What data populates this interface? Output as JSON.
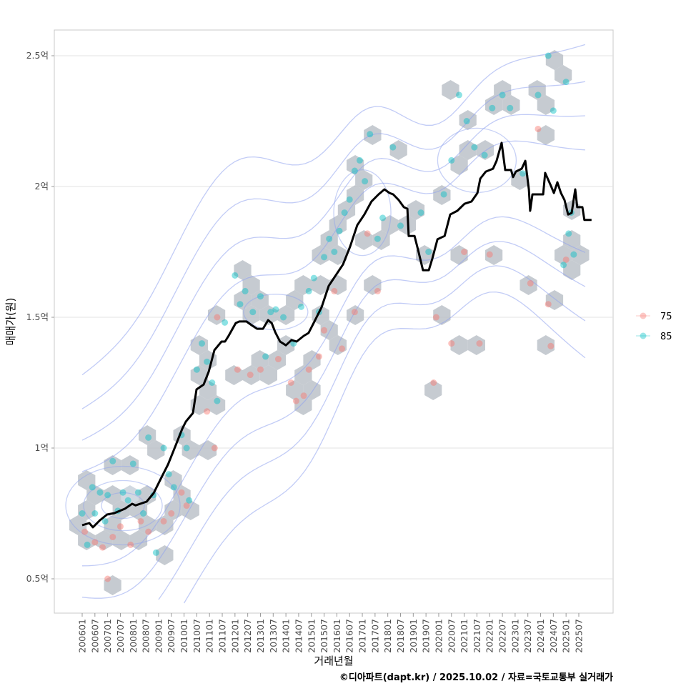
{
  "chart_data": {
    "type": "scatter",
    "title": "",
    "xlabel": "거래년월",
    "ylabel": "매매가(원)",
    "caption": "©디아파트(dapt.kr) / 2025.10.02 / 자료=국토교통부 실거래가",
    "xlim": [
      2004.9,
      2026.9
    ],
    "ylim": [
      0.35,
      2.6
    ],
    "y_ticks": [
      {
        "value": 0.5,
        "label": "0.5억"
      },
      {
        "value": 1.0,
        "label": "1억"
      },
      {
        "value": 1.5,
        "label": "1.5억"
      },
      {
        "value": 2.0,
        "label": "2억"
      },
      {
        "value": 2.5,
        "label": "2.5억"
      }
    ],
    "x_ticks": [
      "200601",
      "200607",
      "200701",
      "200707",
      "200801",
      "200807",
      "200901",
      "200907",
      "201001",
      "201007",
      "201101",
      "201107",
      "201201",
      "201207",
      "201301",
      "201307",
      "201401",
      "201407",
      "201501",
      "201507",
      "201601",
      "201607",
      "201701",
      "201707",
      "201801",
      "201807",
      "201901",
      "201907",
      "202001",
      "202007",
      "202101",
      "202107",
      "202201",
      "202207",
      "202301",
      "202307",
      "202401",
      "202407",
      "202501",
      "202507"
    ],
    "grid": true,
    "legend": {
      "placement": "right",
      "entries": [
        {
          "label": "75",
          "color": "#F8766D"
        },
        {
          "label": "85",
          "color": "#00BFC4"
        }
      ]
    },
    "colors": {
      "line": "#000000",
      "hex": "#b8bec5",
      "contour": "#8fa3ee",
      "grid": "#e3e3e3"
    },
    "trend_line": [
      [
        2006.0,
        0.705
      ],
      [
        2006.28,
        0.713
      ],
      [
        2006.42,
        0.697
      ],
      [
        2006.7,
        0.724
      ],
      [
        2006.98,
        0.746
      ],
      [
        2007.26,
        0.751
      ],
      [
        2007.68,
        0.768
      ],
      [
        2007.96,
        0.787
      ],
      [
        2008.1,
        0.781
      ],
      [
        2008.53,
        0.795
      ],
      [
        2008.81,
        0.828
      ],
      [
        2009.09,
        0.883
      ],
      [
        2009.37,
        0.937
      ],
      [
        2009.65,
        1.005
      ],
      [
        2009.93,
        1.074
      ],
      [
        2010.07,
        1.101
      ],
      [
        2010.35,
        1.134
      ],
      [
        2010.49,
        1.224
      ],
      [
        2010.77,
        1.243
      ],
      [
        2010.97,
        1.292
      ],
      [
        2011.19,
        1.374
      ],
      [
        2011.47,
        1.407
      ],
      [
        2011.61,
        1.407
      ],
      [
        2011.75,
        1.429
      ],
      [
        2012.03,
        1.478
      ],
      [
        2012.17,
        1.484
      ],
      [
        2012.45,
        1.484
      ],
      [
        2012.65,
        1.47
      ],
      [
        2012.87,
        1.456
      ],
      [
        2013.1,
        1.456
      ],
      [
        2013.3,
        1.489
      ],
      [
        2013.44,
        1.478
      ],
      [
        2013.58,
        1.443
      ],
      [
        2013.77,
        1.407
      ],
      [
        2014.0,
        1.393
      ],
      [
        2014.22,
        1.413
      ],
      [
        2014.42,
        1.407
      ],
      [
        2014.7,
        1.429
      ],
      [
        2014.89,
        1.44
      ],
      [
        2015.12,
        1.484
      ],
      [
        2015.4,
        1.538
      ],
      [
        2015.68,
        1.62
      ],
      [
        2015.96,
        1.661
      ],
      [
        2016.24,
        1.702
      ],
      [
        2016.52,
        1.77
      ],
      [
        2016.8,
        1.852
      ],
      [
        2017.08,
        1.893
      ],
      [
        2017.36,
        1.943
      ],
      [
        2017.64,
        1.97
      ],
      [
        2017.87,
        1.989
      ],
      [
        2018.07,
        1.975
      ],
      [
        2018.21,
        1.97
      ],
      [
        2018.43,
        1.948
      ],
      [
        2018.63,
        1.921
      ],
      [
        2018.77,
        1.915
      ],
      [
        2018.82,
        1.811
      ],
      [
        2019.05,
        1.811
      ],
      [
        2019.19,
        1.757
      ],
      [
        2019.38,
        1.68
      ],
      [
        2019.61,
        1.68
      ],
      [
        2019.75,
        1.724
      ],
      [
        2019.95,
        1.798
      ],
      [
        2020.23,
        1.811
      ],
      [
        2020.45,
        1.893
      ],
      [
        2020.73,
        1.907
      ],
      [
        2021.01,
        1.934
      ],
      [
        2021.29,
        1.943
      ],
      [
        2021.52,
        1.975
      ],
      [
        2021.63,
        2.03
      ],
      [
        2021.85,
        2.057
      ],
      [
        2022.13,
        2.068
      ],
      [
        2022.27,
        2.098
      ],
      [
        2022.47,
        2.167
      ],
      [
        2022.61,
        2.063
      ],
      [
        2022.84,
        2.063
      ],
      [
        2022.92,
        2.036
      ],
      [
        2023.03,
        2.057
      ],
      [
        2023.26,
        2.068
      ],
      [
        2023.4,
        2.098
      ],
      [
        2023.54,
        1.989
      ],
      [
        2023.59,
        1.907
      ],
      [
        2023.68,
        1.97
      ],
      [
        2024.1,
        1.97
      ],
      [
        2024.18,
        2.052
      ],
      [
        2024.38,
        2.008
      ],
      [
        2024.52,
        1.975
      ],
      [
        2024.66,
        2.016
      ],
      [
        2024.8,
        1.975
      ],
      [
        2024.94,
        1.948
      ],
      [
        2025.08,
        1.893
      ],
      [
        2025.22,
        1.899
      ],
      [
        2025.36,
        1.989
      ],
      [
        2025.44,
        1.921
      ],
      [
        2025.64,
        1.921
      ],
      [
        2025.72,
        1.872
      ],
      [
        2026.0,
        1.872
      ]
    ],
    "series": [
      {
        "name": "75",
        "points": [
          [
            2006.1,
            0.68
          ],
          [
            2006.5,
            0.64
          ],
          [
            2006.8,
            0.62
          ],
          [
            2007.0,
            0.5
          ],
          [
            2007.2,
            0.66
          ],
          [
            2007.5,
            0.7
          ],
          [
            2007.9,
            0.63
          ],
          [
            2008.3,
            0.72
          ],
          [
            2008.6,
            0.68
          ],
          [
            2009.2,
            0.72
          ],
          [
            2009.5,
            0.75
          ],
          [
            2009.9,
            0.83
          ],
          [
            2010.1,
            0.78
          ],
          [
            2010.9,
            1.14
          ],
          [
            2011.2,
            1.0
          ],
          [
            2011.3,
            1.5
          ],
          [
            2012.1,
            1.3
          ],
          [
            2012.6,
            1.28
          ],
          [
            2013.0,
            1.3
          ],
          [
            2013.7,
            1.34
          ],
          [
            2014.2,
            1.25
          ],
          [
            2014.4,
            1.18
          ],
          [
            2014.7,
            1.2
          ],
          [
            2014.9,
            1.3
          ],
          [
            2015.3,
            1.35
          ],
          [
            2015.5,
            1.45
          ],
          [
            2015.9,
            1.6
          ],
          [
            2016.2,
            1.38
          ],
          [
            2016.7,
            1.52
          ],
          [
            2017.2,
            1.82
          ],
          [
            2017.6,
            1.6
          ],
          [
            2019.8,
            1.25
          ],
          [
            2019.9,
            1.5
          ],
          [
            2020.5,
            1.4
          ],
          [
            2021.0,
            1.75
          ],
          [
            2021.6,
            1.4
          ],
          [
            2022.0,
            1.74
          ],
          [
            2023.6,
            1.63
          ],
          [
            2023.9,
            2.22
          ],
          [
            2024.3,
            1.55
          ],
          [
            2024.4,
            1.39
          ],
          [
            2025.0,
            1.72
          ]
        ]
      },
      {
        "name": "85",
        "points": [
          [
            2006.0,
            0.75
          ],
          [
            2006.2,
            0.63
          ],
          [
            2006.4,
            0.85
          ],
          [
            2006.5,
            0.75
          ],
          [
            2006.7,
            0.83
          ],
          [
            2006.9,
            0.72
          ],
          [
            2007.0,
            0.82
          ],
          [
            2007.2,
            0.95
          ],
          [
            2007.4,
            0.76
          ],
          [
            2007.6,
            0.83
          ],
          [
            2007.8,
            0.8
          ],
          [
            2008.0,
            0.94
          ],
          [
            2008.2,
            0.83
          ],
          [
            2008.4,
            0.75
          ],
          [
            2008.6,
            1.04
          ],
          [
            2008.8,
            0.82
          ],
          [
            2008.9,
            0.6
          ],
          [
            2009.2,
            1.0
          ],
          [
            2009.4,
            0.9
          ],
          [
            2009.6,
            0.85
          ],
          [
            2009.9,
            1.05
          ],
          [
            2010.1,
            1.0
          ],
          [
            2010.2,
            0.8
          ],
          [
            2010.5,
            1.3
          ],
          [
            2010.7,
            1.4
          ],
          [
            2010.9,
            1.33
          ],
          [
            2011.1,
            1.25
          ],
          [
            2011.3,
            1.18
          ],
          [
            2011.6,
            1.48
          ],
          [
            2012.0,
            1.66
          ],
          [
            2012.2,
            1.55
          ],
          [
            2012.4,
            1.6
          ],
          [
            2012.7,
            1.52
          ],
          [
            2013.0,
            1.58
          ],
          [
            2013.2,
            1.35
          ],
          [
            2013.4,
            1.52
          ],
          [
            2013.6,
            1.53
          ],
          [
            2013.9,
            1.5
          ],
          [
            2014.3,
            1.4
          ],
          [
            2014.6,
            1.54
          ],
          [
            2014.9,
            1.6
          ],
          [
            2015.1,
            1.65
          ],
          [
            2015.3,
            1.52
          ],
          [
            2015.5,
            1.73
          ],
          [
            2015.7,
            1.8
          ],
          [
            2015.9,
            1.75
          ],
          [
            2016.1,
            1.83
          ],
          [
            2016.3,
            1.9
          ],
          [
            2016.5,
            1.95
          ],
          [
            2016.7,
            2.06
          ],
          [
            2016.9,
            2.1
          ],
          [
            2017.1,
            2.02
          ],
          [
            2017.3,
            2.2
          ],
          [
            2017.6,
            1.8
          ],
          [
            2017.8,
            1.88
          ],
          [
            2018.2,
            2.15
          ],
          [
            2018.5,
            1.85
          ],
          [
            2019.3,
            1.9
          ],
          [
            2019.6,
            1.75
          ],
          [
            2020.2,
            1.97
          ],
          [
            2020.5,
            2.1
          ],
          [
            2020.8,
            2.35
          ],
          [
            2021.1,
            2.25
          ],
          [
            2021.4,
            2.15
          ],
          [
            2021.8,
            2.12
          ],
          [
            2022.1,
            2.3
          ],
          [
            2022.5,
            2.35
          ],
          [
            2022.8,
            2.3
          ],
          [
            2023.3,
            2.05
          ],
          [
            2023.9,
            2.35
          ],
          [
            2024.3,
            2.5
          ],
          [
            2024.5,
            2.29
          ],
          [
            2025.0,
            2.4
          ],
          [
            2025.1,
            1.82
          ],
          [
            2025.3,
            1.74
          ],
          [
            2024.9,
            1.7
          ],
          [
            2025.2,
            1.9
          ]
        ]
      }
    ]
  }
}
